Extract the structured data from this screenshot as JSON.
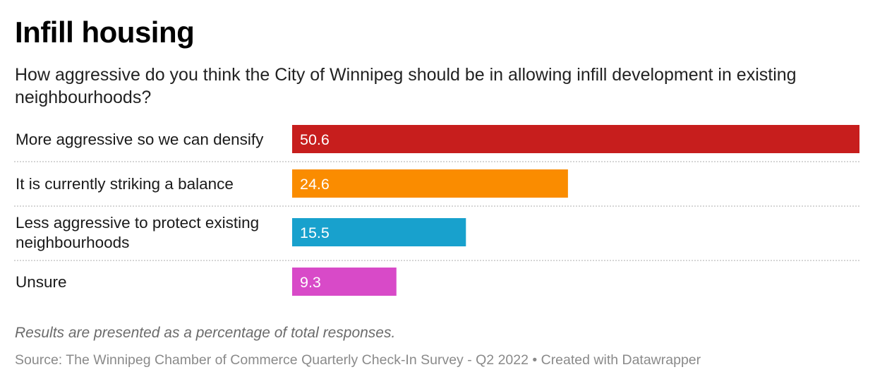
{
  "header": {
    "title": "Infill housing",
    "subtitle": "How aggressive do you think the City of Winnipeg should be in allowing infill development in existing neighbourhoods?"
  },
  "footer": {
    "notes": "Results are presented as a percentage of total responses.",
    "source": "Source: The Winnipeg Chamber of Commerce Quarterly Check-In Survey - Q2 2022 • Created with Datawrapper"
  },
  "chart_data": {
    "type": "bar",
    "orientation": "horizontal",
    "title": "Infill housing",
    "subtitle": "How aggressive do you think the City of Winnipeg should be in allowing infill development in existing neighbourhoods?",
    "categories": [
      [
        "More aggressive so we can densify"
      ],
      [
        "It is currently striking a balance"
      ],
      [
        "Less aggressive to protect existing",
        "neighbourhoods"
      ],
      [
        "Unsure"
      ]
    ],
    "values": [
      50.6,
      24.6,
      15.5,
      9.3
    ],
    "value_labels": [
      "50.6",
      "24.6",
      "15.5",
      "9.3"
    ],
    "colors": [
      "#c71e1d",
      "#fa8c00",
      "#18a1cd",
      "#d84ac8"
    ],
    "xlim": [
      0,
      50.6
    ],
    "grid": false,
    "row_separators": "dotted",
    "legend": "none"
  }
}
